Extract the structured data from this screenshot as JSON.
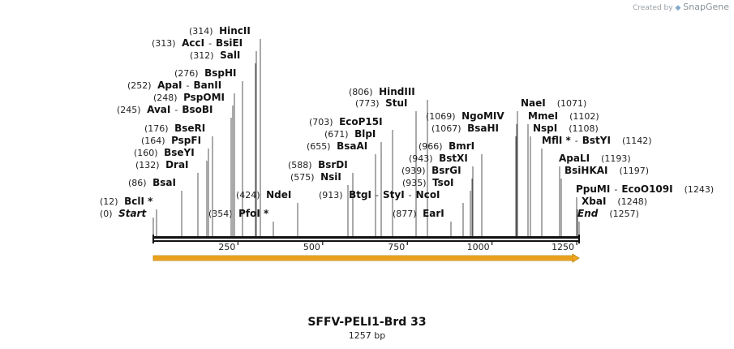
{
  "credit": {
    "prefix": "Created by",
    "brand": "SnapGene"
  },
  "title": "SFFV-PELI1-Brd 33",
  "length_label": "1257 bp",
  "sequence_length": 1257,
  "ticks": [
    "250",
    "500",
    "750",
    "1000",
    "1250"
  ],
  "colors": {
    "feature_arrow": "#f5a623",
    "feature_edge": "#b8860b",
    "backbone": "#111111"
  },
  "sites": [
    {
      "pos": "(0)",
      "name": "Start",
      "italic": true
    },
    {
      "pos": "(12)",
      "name": "BclI *"
    },
    {
      "pos": "(86)",
      "name": "BsaI"
    },
    {
      "pos": "(132)",
      "name": "DraI"
    },
    {
      "pos": "(160)",
      "name": "BseYI"
    },
    {
      "pos": "(164)",
      "name": "PspFI"
    },
    {
      "pos": "(176)",
      "name": "BseRI"
    },
    {
      "pos": "(245)",
      "name": "AvaI",
      "name2": "BsoBI"
    },
    {
      "pos": "(248)",
      "name": "PspOMI"
    },
    {
      "pos": "(252)",
      "name": "ApaI",
      "name2": "BanII"
    },
    {
      "pos": "(276)",
      "name": "BspHI"
    },
    {
      "pos": "(312)",
      "name": "SalI"
    },
    {
      "pos": "(313)",
      "name": "AccI",
      "name2": "BsiEI"
    },
    {
      "pos": "(314)",
      "name": "HincII"
    },
    {
      "pos": "(354)",
      "name": "PfoI *"
    },
    {
      "pos": "(424)",
      "name": "NdeI"
    },
    {
      "pos": "(575)",
      "name": "NsiI"
    },
    {
      "pos": "(588)",
      "name": "BsrDI"
    },
    {
      "pos": "(655)",
      "name": "BsaAI"
    },
    {
      "pos": "(671)",
      "name": "BlpI"
    },
    {
      "pos": "(703)",
      "name": "EcoP15I"
    },
    {
      "pos": "(773)",
      "name": "StuI"
    },
    {
      "pos": "(806)",
      "name": "HindIII"
    },
    {
      "pos": "(877)",
      "name": "EarI"
    },
    {
      "pos": "(913)",
      "name": "BtgI",
      "name2": "StyI",
      "name3": "NcoI"
    },
    {
      "pos": "(935)",
      "name": "TsoI"
    },
    {
      "pos": "(939)",
      "name": "BsrGI"
    },
    {
      "pos": "(943)",
      "name": "BstXI"
    },
    {
      "pos": "(966)",
      "name": "BmrI"
    },
    {
      "pos": "(1067)",
      "name": "BsaHI"
    },
    {
      "pos": "(1069)",
      "name": "NgoMIV"
    },
    {
      "pos": "(1071)",
      "name": "NaeI"
    },
    {
      "pos": "(1102)",
      "name": "MmeI"
    },
    {
      "pos": "(1108)",
      "name": "NspI"
    },
    {
      "pos": "(1142)",
      "name": "MflI *",
      "name2": "BstYI"
    },
    {
      "pos": "(1193)",
      "name": "ApaLI"
    },
    {
      "pos": "(1197)",
      "name": "BsiHKAI"
    },
    {
      "pos": "(1243)",
      "name": "PpuMI",
      "name2": "EcoO109I"
    },
    {
      "pos": "(1248)",
      "name": "XbaI"
    },
    {
      "pos": "(1257)",
      "name": "End",
      "italic": true
    }
  ]
}
